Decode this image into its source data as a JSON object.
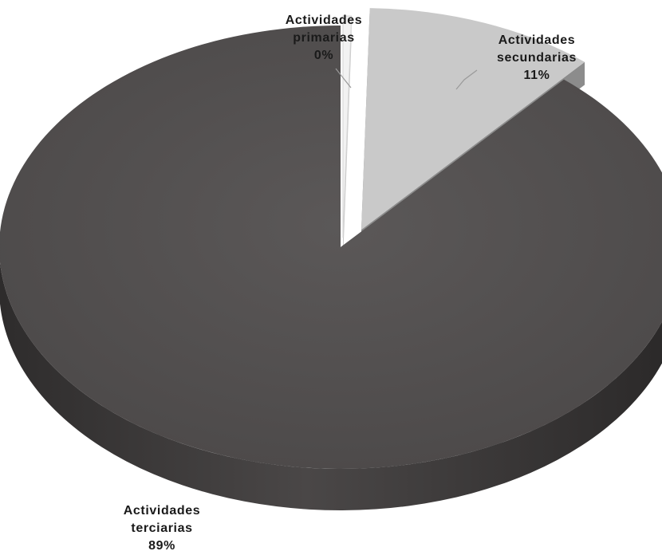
{
  "chart_data": {
    "type": "pie",
    "title": "",
    "style": "3d-exploded",
    "slices": [
      {
        "label_lines": [
          "Actividades",
          "primarias"
        ],
        "value": 0.4,
        "percent_label": "0%",
        "color": "#f2f2f2",
        "side_color": "#c8c8c8"
      },
      {
        "label_lines": [
          "Actividades",
          "secundarias"
        ],
        "value": 11,
        "percent_label": "11%",
        "color": "#c9c9c9",
        "side_color": "#8c8c8c"
      },
      {
        "label_lines": [
          "Actividades",
          "terciarias"
        ],
        "value": 89,
        "percent_label": "89%",
        "color": "#555252",
        "side_color": "#3a3838"
      }
    ],
    "legend": "none",
    "data_labels": "category name and percentage, outside with leader lines"
  }
}
